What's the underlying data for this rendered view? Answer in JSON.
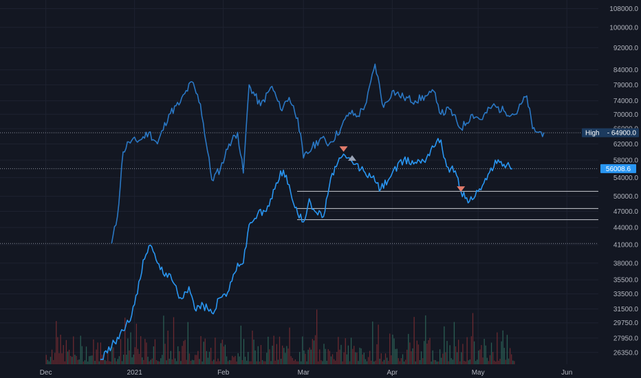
{
  "chart_data": {
    "type": "line",
    "title": "",
    "xlabel": "",
    "ylabel": "",
    "y_scale": "log",
    "colors": {
      "background": "#131722",
      "grid": "#1e2230",
      "axis_text": "#b2b5be",
      "series_primary": "#2a78c5",
      "series_secondary": "#2996f2",
      "volume_up": "#2f6a5c",
      "volume_down": "#7a2d33",
      "high_label_bg": "#1c3a5e",
      "last_label_bg": "#2996f2",
      "level_label_bg": "#ffffff",
      "marker_down": "#e07a6a",
      "marker_up": "#9aa3b5"
    },
    "y_ticks": [
      "108000.0",
      "100000.0",
      "92000.0",
      "84000.0",
      "79000.0",
      "74000.0",
      "70000.0",
      "66000.0",
      "62000.0",
      "58000.0",
      "54000.0",
      "50000.0",
      "47000.0",
      "44000.0",
      "41000.0",
      "38000.0",
      "35500.0",
      "33500.0",
      "31500.0",
      "29750.0",
      "27950.0",
      "26350.0"
    ],
    "y_tick_values": [
      108000,
      100000,
      92000,
      84000,
      79000,
      74000,
      70000,
      66000,
      62000,
      58000,
      54000,
      50000,
      47000,
      44000,
      41000,
      38000,
      35500,
      33500,
      31500,
      29750,
      27950,
      26350
    ],
    "x_ticks": [
      {
        "label": "Dec",
        "date": "2020-12-01"
      },
      {
        "label": "2021",
        "date": "2021-01-01"
      },
      {
        "label": "Feb",
        "date": "2021-02-01"
      },
      {
        "label": "Mar",
        "date": "2021-03-01"
      },
      {
        "label": "Apr",
        "date": "2021-04-01"
      },
      {
        "label": "May",
        "date": "2021-05-01"
      },
      {
        "label": "Jun",
        "date": "2021-06-01"
      }
    ],
    "x_range": [
      "2020-11-15",
      "2021-06-12"
    ],
    "y_range": [
      25100,
      110000
    ],
    "series": [
      {
        "x": [
          "2020-12-24",
          "2020-12-26",
          "2020-12-28",
          "2020-12-30",
          "2021-01-03",
          "2021-01-06",
          "2021-01-09",
          "2021-01-13",
          "2021-01-17",
          "2021-01-21",
          "2021-01-24",
          "2021-01-28",
          "2021-01-31",
          "2021-02-03",
          "2021-02-06",
          "2021-02-08",
          "2021-02-10",
          "2021-02-14",
          "2021-02-18",
          "2021-02-21",
          "2021-02-24",
          "2021-02-27",
          "2021-03-01",
          "2021-03-04",
          "2021-03-07",
          "2021-03-10",
          "2021-03-14",
          "2021-03-17",
          "2021-03-20",
          "2021-03-23",
          "2021-03-26",
          "2021-03-29",
          "2021-04-01",
          "2021-04-05",
          "2021-04-09",
          "2021-04-13",
          "2021-04-16",
          "2021-04-18",
          "2021-04-21",
          "2021-04-25",
          "2021-04-29",
          "2021-05-02",
          "2021-05-06",
          "2021-05-10",
          "2021-05-14",
          "2021-05-18",
          "2021-05-20",
          "2021-05-22",
          "2021-05-24"
        ],
        "values": [
          41200,
          46000,
          60000,
          62500,
          63000,
          65000,
          62000,
          70000,
          73500,
          80000,
          73000,
          53500,
          56000,
          62000,
          65000,
          55000,
          79000,
          72500,
          78500,
          71500,
          75000,
          69000,
          58500,
          61000,
          63500,
          62000,
          66000,
          70500,
          69500,
          73500,
          86000,
          72000,
          77000,
          75000,
          74000,
          75500,
          76500,
          70000,
          71500,
          66000,
          70000,
          68500,
          72500,
          71000,
          70000,
          75500,
          66000,
          65000,
          64900
        ]
      },
      {
        "x": [
          "2020-12-20",
          "2020-12-24",
          "2020-12-27",
          "2020-12-30",
          "2021-01-02",
          "2021-01-04",
          "2021-01-06",
          "2021-01-08",
          "2021-01-10",
          "2021-01-12",
          "2021-01-14",
          "2021-01-17",
          "2021-01-20",
          "2021-01-22",
          "2021-01-25",
          "2021-01-28",
          "2021-01-31",
          "2021-02-03",
          "2021-02-06",
          "2021-02-08",
          "2021-02-10",
          "2021-02-13",
          "2021-02-16",
          "2021-02-19",
          "2021-02-21",
          "2021-02-23",
          "2021-02-25",
          "2021-02-27",
          "2021-03-01",
          "2021-03-03",
          "2021-03-05",
          "2021-03-08",
          "2021-03-10",
          "2021-03-12",
          "2021-03-14",
          "2021-03-16",
          "2021-03-19",
          "2021-03-22",
          "2021-03-25",
          "2021-03-28",
          "2021-04-01",
          "2021-04-05",
          "2021-04-09",
          "2021-04-13",
          "2021-04-15",
          "2021-04-18",
          "2021-04-20",
          "2021-04-23",
          "2021-04-25",
          "2021-04-28",
          "2021-05-01",
          "2021-05-04",
          "2021-05-07",
          "2021-05-10",
          "2021-05-13"
        ],
        "values": [
          25600,
          27000,
          28500,
          29800,
          33500,
          38500,
          40800,
          39500,
          37000,
          36500,
          35500,
          33000,
          34500,
          31500,
          32000,
          31000,
          33000,
          34000,
          38000,
          38000,
          44500,
          46500,
          47000,
          51500,
          55500,
          54500,
          49500,
          46500,
          45000,
          49500,
          47000,
          46000,
          52000,
          56500,
          58500,
          58500,
          57000,
          55500,
          54000,
          51500,
          55000,
          58000,
          57500,
          58500,
          61500,
          63000,
          56500,
          55500,
          51000,
          49000,
          51000,
          53500,
          58000,
          57000,
          56008.6
        ]
      }
    ],
    "candle_markers": [
      {
        "date": "2021-03-15",
        "value": 60700
      },
      {
        "date": "2021-04-25",
        "value": 51500
      }
    ],
    "up_markers": [
      {
        "date": "2021-03-18",
        "value": 58500
      }
    ],
    "levels": [
      {
        "label": "51027.8",
        "value": 51027.8
      },
      {
        "label": "47550.1",
        "value": 47550.1
      },
      {
        "label": "45432.2",
        "value": 45432.2
      }
    ],
    "dotted_levels": [
      64900,
      56008.6,
      41200
    ],
    "price_labels": {
      "high": {
        "text": "High",
        "value_text": "64900.0",
        "value": 64900
      },
      "last": {
        "text": "56008.6",
        "value": 56008.6
      }
    },
    "volume": {
      "start": "2020-12-01",
      "end": "2021-05-13",
      "up_color_key": "volume_up",
      "down_color_key": "volume_down"
    }
  }
}
